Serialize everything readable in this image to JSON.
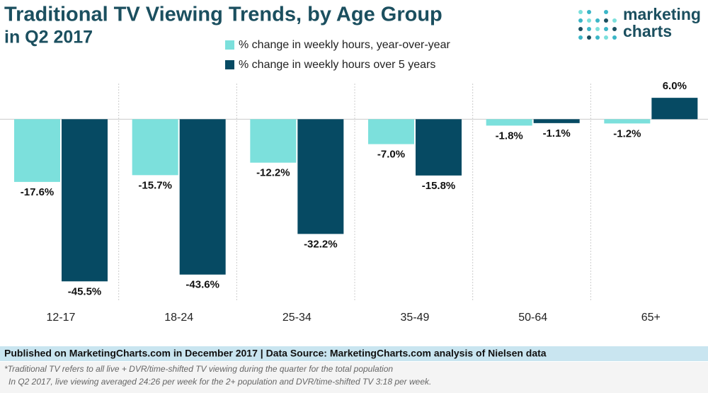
{
  "chart_data": {
    "type": "bar",
    "title": "Traditional TV Viewing Trends, by Age Group",
    "subtitle": "in Q2 2017",
    "categories": [
      "12-17",
      "18-24",
      "25-34",
      "35-49",
      "50-64",
      "65+"
    ],
    "series": [
      {
        "name": "% change in weekly hours, year-over-year",
        "color": "#7ce0dc",
        "values": [
          -17.6,
          -15.7,
          -12.2,
          -7.0,
          -1.8,
          -1.2
        ],
        "value_labels": [
          "-17.6%",
          "-15.7%",
          "-12.2%",
          "-7.0%",
          "-1.8%",
          "-1.2%"
        ]
      },
      {
        "name": "% change in weekly hours over 5 years",
        "color": "#064a63",
        "values": [
          -45.5,
          -43.6,
          -32.2,
          -15.8,
          -1.1,
          6.0
        ],
        "value_labels": [
          "-45.5%",
          "-43.6%",
          "-32.2%",
          "-15.8%",
          "-1.1%",
          "6.0%"
        ]
      }
    ],
    "ylim": [
      -51,
      10
    ],
    "source": "Published on MarketingCharts.com in December 2017 | Data Source: MarketingCharts.com analysis of Nielsen data",
    "notes": [
      "*Traditional TV refers to all live + DVR/time-shifted TV viewing during the quarter for the total population",
      "In Q2 2017, live viewing averaged 24:26 per week for the 2+ population and DVR/time-shifted TV 3:18 per week."
    ]
  },
  "logo": {
    "line1": "marketing",
    "line2": "charts"
  }
}
